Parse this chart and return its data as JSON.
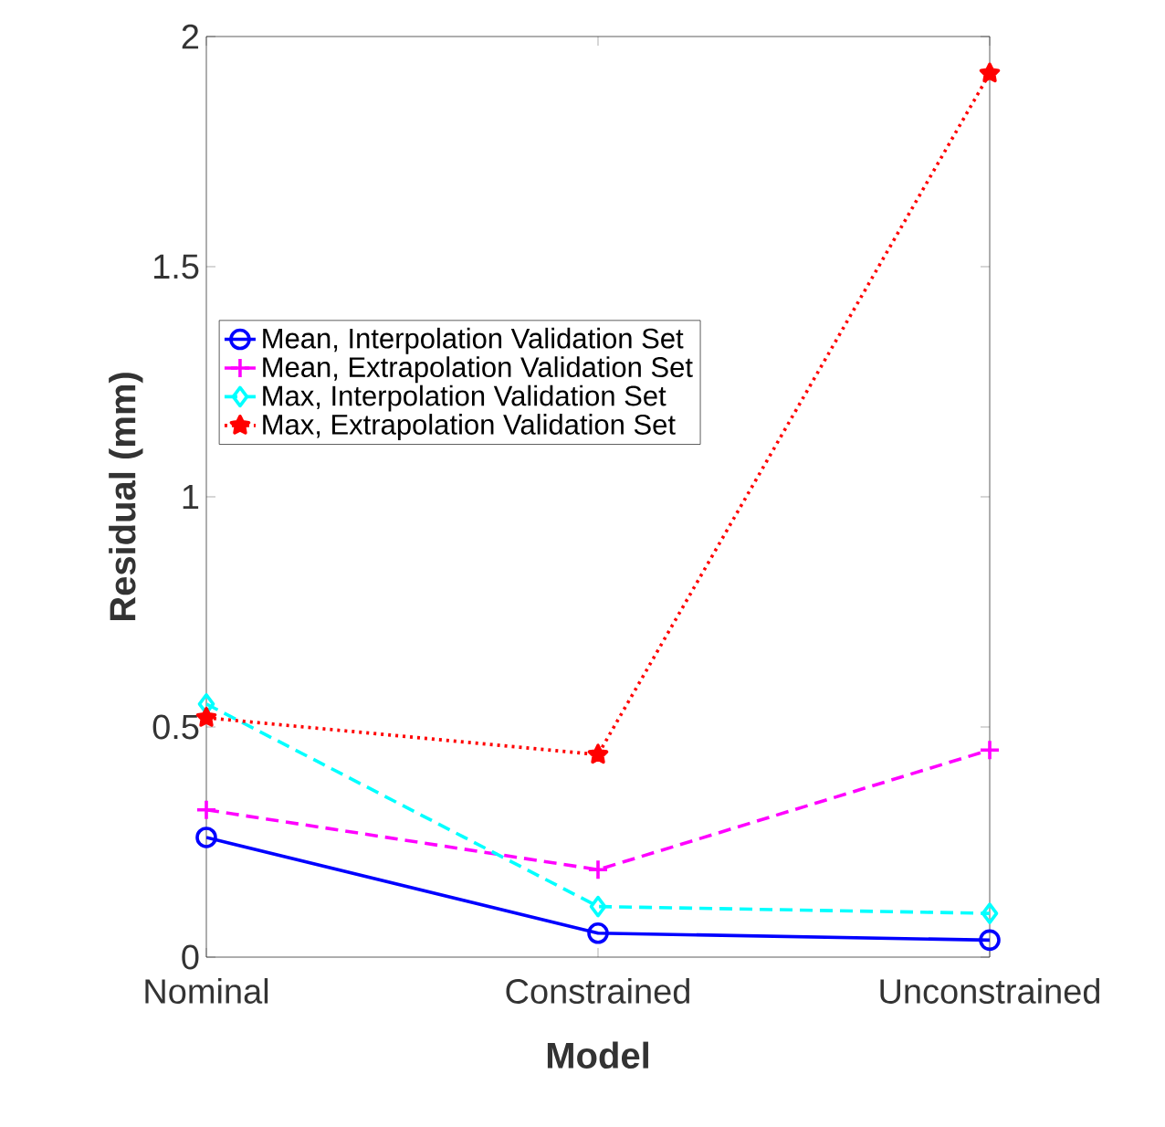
{
  "chart_data": {
    "type": "line",
    "xlabel": "Model",
    "ylabel": "Residual (mm)",
    "categories": [
      "Nominal",
      "Constrained",
      "Unconstrained"
    ],
    "ylim": [
      0,
      2
    ],
    "yticks": [
      0,
      0.5,
      1,
      1.5,
      2
    ],
    "grid": false,
    "legend": "top left",
    "series": [
      {
        "name": "Mean, Interpolation Validation Set",
        "color": "#0000ff",
        "values": [
          0.26,
          0.052,
          0.037
        ],
        "marker": "circle",
        "line_style": "solid"
      },
      {
        "name": "Mean, Extrapolation Validation Set",
        "color": "#ff00ff",
        "values": [
          0.32,
          0.19,
          0.45
        ],
        "marker": "cross",
        "line_style": "dashed"
      },
      {
        "name": "Max, Interpolation Validation Set",
        "color": "#00ffff",
        "values": [
          0.55,
          0.11,
          0.095
        ],
        "marker": "diamond",
        "line_style": "dashed"
      },
      {
        "name": "Max, Extrapolation Validation Set",
        "color": "#ff0000",
        "values": [
          0.52,
          0.44,
          1.92
        ],
        "marker": "star",
        "line_style": "dotted"
      }
    ]
  }
}
